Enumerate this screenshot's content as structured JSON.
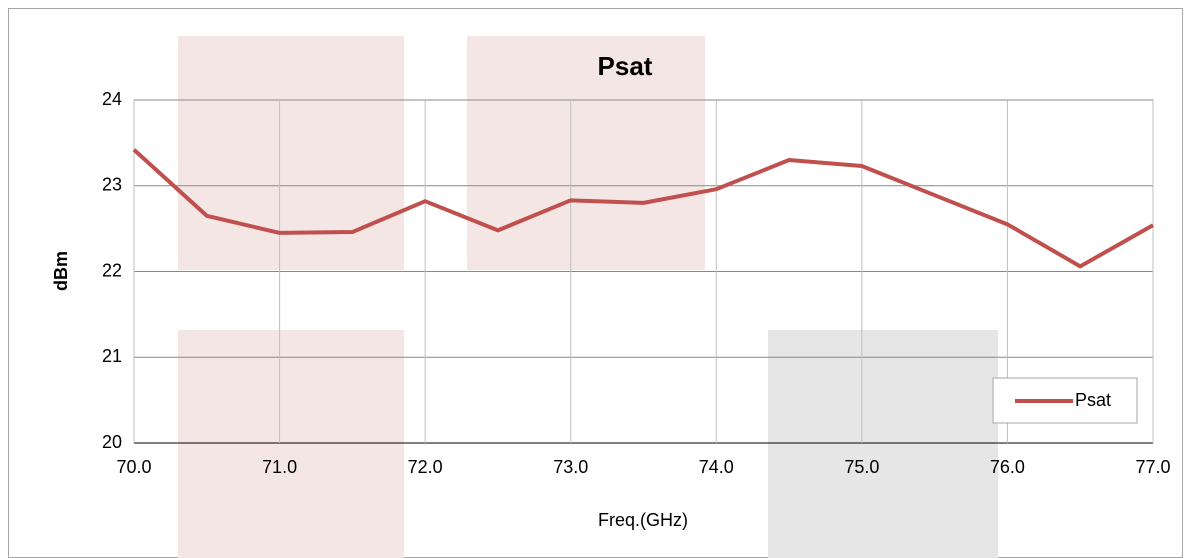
{
  "chart_data": {
    "type": "line",
    "title": "Psat",
    "xlabel": "Freq.(GHz)",
    "ylabel": "dBm",
    "x": [
      70.0,
      70.5,
      71.0,
      71.5,
      72.0,
      72.5,
      73.0,
      73.5,
      74.0,
      74.5,
      75.0,
      75.5,
      76.0,
      76.5,
      77.0
    ],
    "series": [
      {
        "name": "Psat",
        "color": "#c0504d",
        "values": [
          23.42,
          22.65,
          22.45,
          22.46,
          22.82,
          22.48,
          22.83,
          22.8,
          22.96,
          23.3,
          23.23,
          22.89,
          22.55,
          22.06,
          22.54
        ]
      }
    ],
    "xlim": [
      70,
      77
    ],
    "xticks": [
      {
        "value": 70,
        "label": "70.0"
      },
      {
        "value": 71,
        "label": "71.0"
      },
      {
        "value": 72,
        "label": "72.0"
      },
      {
        "value": 73,
        "label": "73.0"
      },
      {
        "value": 74,
        "label": "74.0"
      },
      {
        "value": 75,
        "label": "75.0"
      },
      {
        "value": 76,
        "label": "76.0"
      },
      {
        "value": 77,
        "label": "77.0"
      }
    ],
    "ylim": [
      20,
      24
    ],
    "yticks": [
      20,
      21,
      22,
      23,
      24
    ],
    "grid": true,
    "legend": "lower right"
  }
}
